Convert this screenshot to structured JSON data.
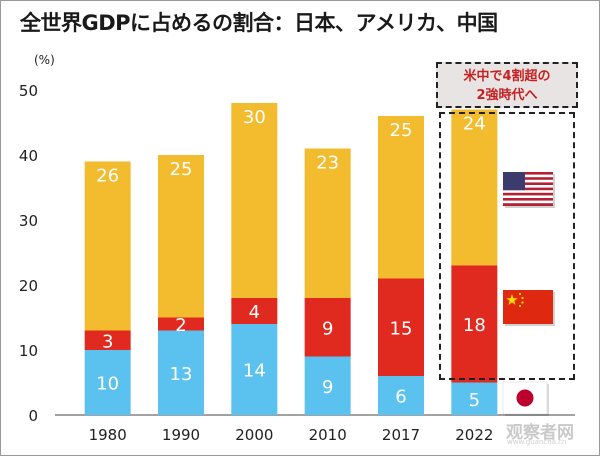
{
  "title": "全世界GDPに占めるの割合：日本、アメリカ、中国",
  "callout": {
    "line1": "米中で4割超の",
    "line2": "2強時代へ"
  },
  "watermark": {
    "text": "观察者网",
    "sub": "www.guancha.cn"
  },
  "colors": {
    "japan": "#5bc2ef",
    "china": "#e02a1f",
    "usa": "#f3bb2e",
    "background": "#ffffff"
  },
  "flags": [
    "usa-flag-icon",
    "china-flag-icon",
    "japan-flag-icon"
  ],
  "chart_data": {
    "type": "bar",
    "stacked": true,
    "unit_label": "(%)",
    "categories": [
      "1980",
      "1990",
      "2000",
      "2010",
      "2017",
      "2022"
    ],
    "ylim": [
      0,
      50
    ],
    "yticks": [
      0,
      10,
      20,
      30,
      40,
      50
    ],
    "grid": false,
    "legend": "flags at right",
    "series": [
      {
        "values": [
          10,
          13,
          14,
          9,
          6,
          5
        ]
      },
      {
        "values": [
          3,
          2,
          4,
          9,
          15,
          18
        ]
      },
      {
        "values": [
          26,
          25,
          30,
          23,
          25,
          24
        ]
      }
    ]
  }
}
